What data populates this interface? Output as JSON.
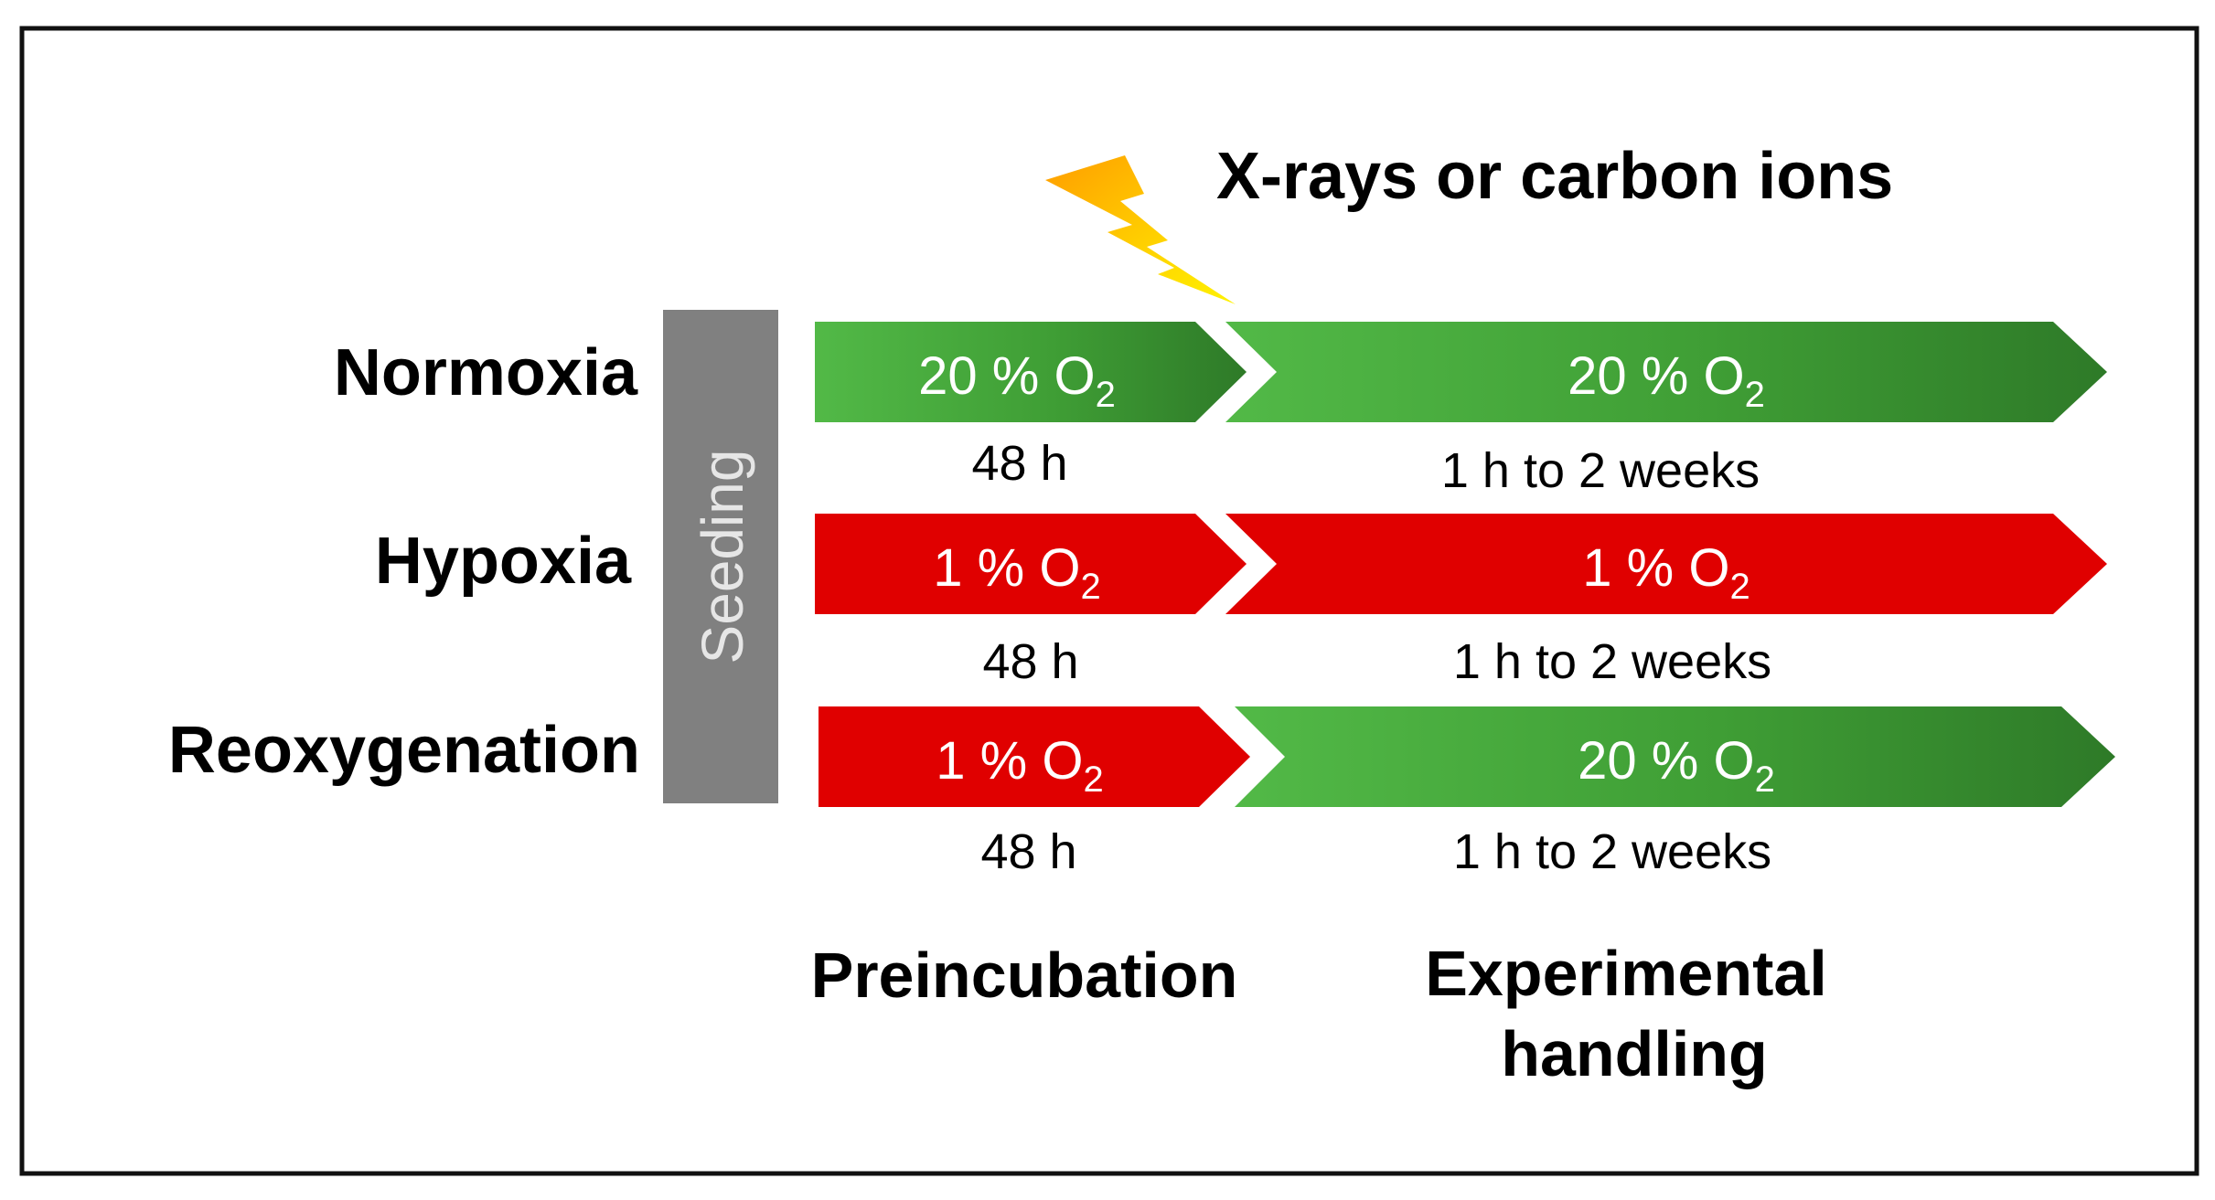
{
  "title": "X-rays or carbon ions",
  "seeding_label": "Seeding",
  "colors": {
    "normoxia_green": "#3f9e35",
    "hypoxia_red": "#e00000",
    "seeding_gray": "#808080",
    "lightning_yellow": "#ffd400"
  },
  "rows": [
    {
      "label": "Normoxia",
      "pre": {
        "value": "20",
        "unit": "% O",
        "sub": "2",
        "condition": "normoxia"
      },
      "exp": {
        "value": "20",
        "unit": "% O",
        "sub": "2",
        "condition": "normoxia"
      },
      "pre_duration": "48 h",
      "exp_duration": "1 h to 2 weeks"
    },
    {
      "label": "Hypoxia",
      "pre": {
        "value": "1",
        "unit": "% O",
        "sub": "2",
        "condition": "hypoxia"
      },
      "exp": {
        "value": "1",
        "unit": "% O",
        "sub": "2",
        "condition": "hypoxia"
      },
      "pre_duration": "48 h",
      "exp_duration": "1 h to 2 weeks"
    },
    {
      "label": "Reoxygenation",
      "pre": {
        "value": "1",
        "unit": "% O",
        "sub": "2",
        "condition": "hypoxia"
      },
      "exp": {
        "value": "20",
        "unit": "% O",
        "sub": "2",
        "condition": "normoxia"
      },
      "pre_duration": "48 h",
      "exp_duration": "1 h to 2 weeks"
    }
  ],
  "phases": {
    "preincubation": "Preincubation",
    "experimental_line1": "Experimental",
    "experimental_line2": "handling"
  }
}
